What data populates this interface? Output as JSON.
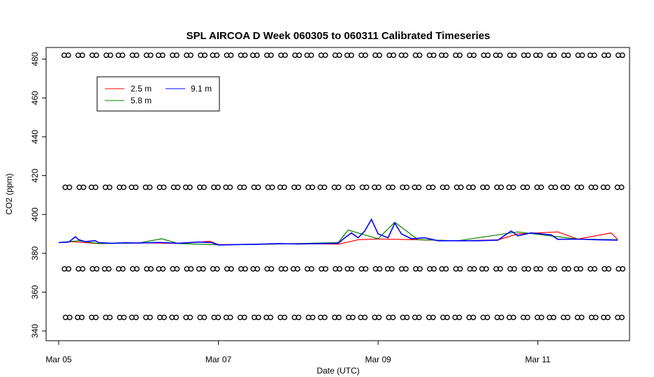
{
  "chart_data": {
    "type": "line",
    "title": "SPL AIRCOA D  Week 060305 to 060311  Calibrated Timeseries",
    "xlabel": "Date (UTC)",
    "ylabel": "CO2 (ppm)",
    "xlim": [
      "2006-03-05",
      "2006-03-12"
    ],
    "ylim": [
      335,
      486
    ],
    "x_ticks": [
      {
        "value": "2006-03-05",
        "label": "Mar 05"
      },
      {
        "value": "2006-03-07",
        "label": "Mar 07"
      },
      {
        "value": "2006-03-09",
        "label": "Mar 09"
      },
      {
        "value": "2006-03-11",
        "label": "Mar 11"
      }
    ],
    "y_ticks": [
      340,
      360,
      380,
      400,
      420,
      440,
      460,
      480
    ],
    "legend_position": "top-left",
    "series": [
      {
        "name": "2.5 m",
        "color": "#ff0000",
        "points": [
          [
            "2006-03-05T00:00",
            385.6
          ],
          [
            "2006-03-05T04:00",
            386.0
          ],
          [
            "2006-03-05T12:00",
            385.0
          ],
          [
            "2006-03-06T00:00",
            385.4
          ],
          [
            "2006-03-06T12:00",
            385.1
          ],
          [
            "2006-03-06T21:30",
            386.2
          ],
          [
            "2006-03-07T00:00",
            384.5
          ],
          [
            "2006-03-07T12:00",
            384.6
          ],
          [
            "2006-03-08T02:00",
            385.0
          ],
          [
            "2006-03-08T12:00",
            384.7
          ],
          [
            "2006-03-08T18:00",
            387.0
          ],
          [
            "2006-03-09T00:00",
            387.4
          ],
          [
            "2006-03-09T12:00",
            387.0
          ],
          [
            "2006-03-10T00:00",
            386.4
          ],
          [
            "2006-03-10T12:00",
            386.9
          ],
          [
            "2006-03-10T18:00",
            390.0
          ],
          [
            "2006-03-11T06:00",
            391.0
          ],
          [
            "2006-03-11T12:00",
            387.3
          ],
          [
            "2006-03-11T22:00",
            390.5
          ],
          [
            "2006-03-12T00:00",
            387.2
          ]
        ]
      },
      {
        "name": "5.8 m",
        "color": "#008000",
        "points": [
          [
            "2006-03-05T00:00",
            385.6
          ],
          [
            "2006-03-05T06:00",
            386.5
          ],
          [
            "2006-03-05T12:00",
            385.0
          ],
          [
            "2006-03-06T00:00",
            385.3
          ],
          [
            "2006-03-06T07:00",
            387.5
          ],
          [
            "2006-03-06T12:00",
            385.0
          ],
          [
            "2006-03-07T00:00",
            384.4
          ],
          [
            "2006-03-07T12:00",
            384.6
          ],
          [
            "2006-03-08T00:00",
            385.0
          ],
          [
            "2006-03-08T12:00",
            385.5
          ],
          [
            "2006-03-08T15:00",
            392.0
          ],
          [
            "2006-03-09T00:00",
            387.5
          ],
          [
            "2006-03-09T05:00",
            396.0
          ],
          [
            "2006-03-09T12:00",
            387.0
          ],
          [
            "2006-03-10T00:00",
            386.5
          ],
          [
            "2006-03-10T18:00",
            391.0
          ],
          [
            "2006-03-11T12:00",
            387.3
          ],
          [
            "2006-03-12T00:00",
            387.0
          ]
        ]
      },
      {
        "name": "9.1 m",
        "color": "#0000ff",
        "points": [
          [
            "2006-03-05T00:00",
            385.5
          ],
          [
            "2006-03-05T03:00",
            385.8
          ],
          [
            "2006-03-05T05:00",
            388.5
          ],
          [
            "2006-03-05T06:00",
            387.0
          ],
          [
            "2006-03-05T08:00",
            386.0
          ],
          [
            "2006-03-05T09:00",
            386.2
          ],
          [
            "2006-03-05T11:00",
            386.5
          ],
          [
            "2006-03-05T12:00",
            385.5
          ],
          [
            "2006-03-05T16:00",
            385.2
          ],
          [
            "2006-03-05T20:00",
            385.4
          ],
          [
            "2006-03-06T00:00",
            385.3
          ],
          [
            "2006-03-06T06:00",
            385.6
          ],
          [
            "2006-03-06T12:00",
            385.2
          ],
          [
            "2006-03-06T18:00",
            385.8
          ],
          [
            "2006-03-06T22:00",
            385.5
          ],
          [
            "2006-03-07T00:00",
            384.3
          ],
          [
            "2006-03-07T06:00",
            384.5
          ],
          [
            "2006-03-07T12:00",
            384.7
          ],
          [
            "2006-03-07T18:00",
            385.0
          ],
          [
            "2006-03-08T00:00",
            384.8
          ],
          [
            "2006-03-08T06:00",
            385.0
          ],
          [
            "2006-03-08T12:00",
            385.2
          ],
          [
            "2006-03-08T14:00",
            388.0
          ],
          [
            "2006-03-08T16:00",
            390.5
          ],
          [
            "2006-03-08T18:00",
            388.0
          ],
          [
            "2006-03-08T20:00",
            391.5
          ],
          [
            "2006-03-08T22:00",
            397.5
          ],
          [
            "2006-03-09T00:00",
            390.0
          ],
          [
            "2006-03-09T03:00",
            388.0
          ],
          [
            "2006-03-09T05:00",
            395.5
          ],
          [
            "2006-03-09T07:00",
            390.0
          ],
          [
            "2006-03-09T10:00",
            387.5
          ],
          [
            "2006-03-09T14:00",
            388.0
          ],
          [
            "2006-03-09T18:00",
            386.5
          ],
          [
            "2006-03-10T00:00",
            386.5
          ],
          [
            "2006-03-10T06:00",
            386.5
          ],
          [
            "2006-03-10T12:00",
            386.8
          ],
          [
            "2006-03-10T16:00",
            391.5
          ],
          [
            "2006-03-10T18:00",
            389.0
          ],
          [
            "2006-03-10T22:00",
            390.5
          ],
          [
            "2006-03-11T04:00",
            389.5
          ],
          [
            "2006-03-11T06:00",
            387.2
          ],
          [
            "2006-03-11T12:00",
            387.3
          ],
          [
            "2006-03-11T18:00",
            387.0
          ],
          [
            "2006-03-12T00:00",
            386.8
          ]
        ]
      }
    ],
    "calibration_rows": [
      {
        "value": 482,
        "count": 42
      },
      {
        "value": 414,
        "count": 42
      },
      {
        "value": 372,
        "count": 42
      },
      {
        "value": 347,
        "count": 42
      }
    ]
  }
}
